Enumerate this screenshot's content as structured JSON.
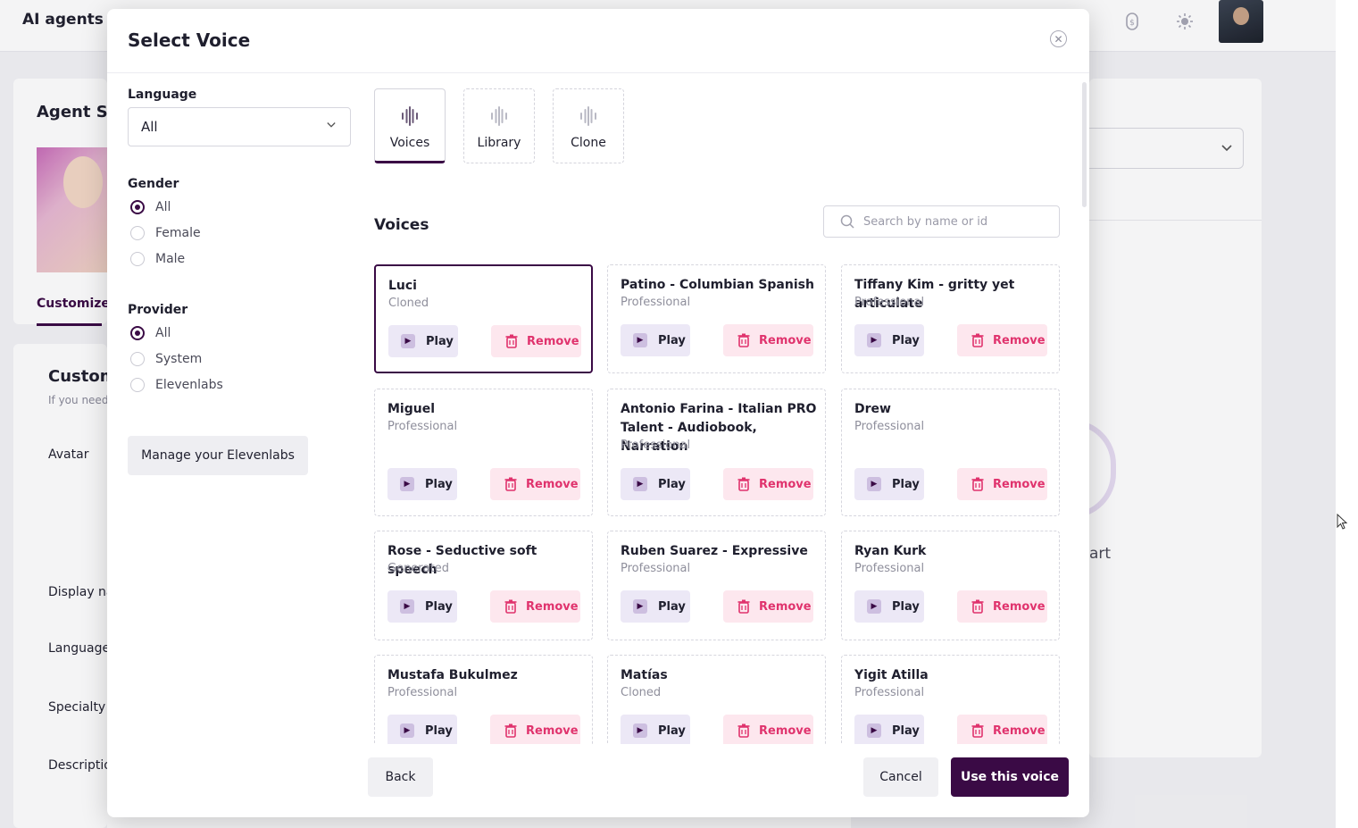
{
  "app": {
    "title": "AI agents",
    "bg_labels": {
      "agent_settings": "Agent Se",
      "customize_tab": "Customize",
      "customize_heading": "Customi",
      "customize_sub": "If you need",
      "avatar": "Avatar",
      "display_name": "Display na",
      "language": "Language",
      "specialty": "Specialty",
      "specialty_required": "*",
      "description": "Descriptio",
      "right_label": "art"
    }
  },
  "modal": {
    "title": "Select Voice",
    "close_icon": "close-icon",
    "filters": {
      "language_label": "Language",
      "language_value": "All",
      "gender_label": "Gender",
      "gender_options": [
        "All",
        "Female",
        "Male"
      ],
      "gender_selected": 0,
      "provider_label": "Provider",
      "provider_options": [
        "All",
        "System",
        "Elevenlabs"
      ],
      "provider_selected": 0,
      "manage_button": "Manage your Elevenlabs"
    },
    "tabs": [
      {
        "label": "Voices",
        "active": true
      },
      {
        "label": "Library",
        "active": false
      },
      {
        "label": "Clone",
        "active": false
      }
    ],
    "section_title": "Voices",
    "search_placeholder": "Search by name or id",
    "play_label": "Play",
    "remove_label": "Remove",
    "voices": [
      {
        "name": "Luci",
        "type": "Cloned",
        "selected": true
      },
      {
        "name": "Patino - Columbian Spanish",
        "type": "Professional"
      },
      {
        "name": "Tiffany Kim - gritty yet articulate",
        "type": "Professional"
      },
      {
        "name": "Miguel",
        "type": "Professional"
      },
      {
        "name": "Antonio Farina - Italian PRO Talent - Audiobook, Narration",
        "type": "Professional"
      },
      {
        "name": "Drew",
        "type": "Professional"
      },
      {
        "name": "Rose - Seductive soft speech",
        "type": "Generated"
      },
      {
        "name": "Ruben Suarez - Expressive",
        "type": "Professional"
      },
      {
        "name": "Ryan Kurk",
        "type": "Professional"
      },
      {
        "name": "Mustafa Bukulmez",
        "type": "Professional"
      },
      {
        "name": "Matías",
        "type": "Cloned"
      },
      {
        "name": "Yigit Atilla",
        "type": "Professional"
      }
    ],
    "footer": {
      "back": "Back",
      "cancel": "Cancel",
      "use": "Use this voice"
    }
  },
  "colors": {
    "accent": "#3a0a45",
    "remove": "#e0336d",
    "play_bg": "#ece8f6",
    "remove_bg": "#fde7ee"
  }
}
